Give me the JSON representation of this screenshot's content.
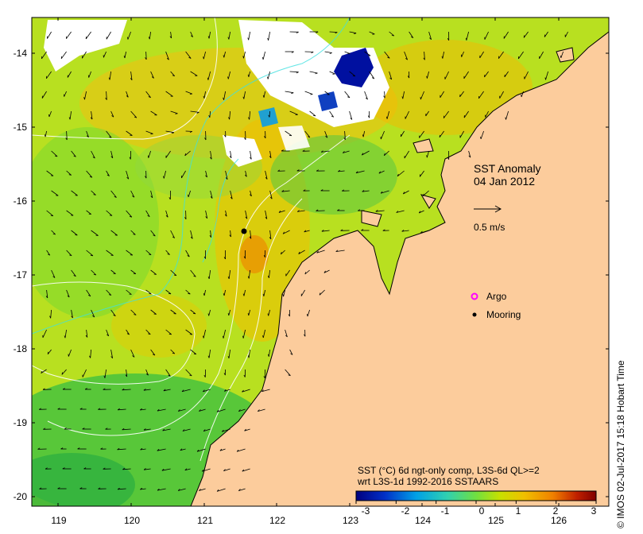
{
  "title": {
    "line1": "SST Anomaly",
    "line2": "04 Jan 2012"
  },
  "vector_scale": {
    "label": "0.5 m/s"
  },
  "legend": {
    "argo": "Argo",
    "mooring": "Mooring"
  },
  "description": {
    "line1": "SST (°C) 6d ngt-only comp, L3S-6d QL>=2",
    "line2": "wrt L3S-1d 1992-2016 SSTAARS"
  },
  "credit": "© IMOS 02-Jul-2017 15:18 Hobart Time",
  "axes": {
    "lon_ticks": [
      "119",
      "120",
      "121",
      "122",
      "123",
      "124",
      "125",
      "126"
    ],
    "lat_ticks": [
      "-14",
      "-15",
      "-16",
      "-17",
      "-18",
      "-19",
      "-20"
    ]
  },
  "colorbar": {
    "ticks": [
      "-3",
      "-2",
      "-1",
      "0",
      "1",
      "2",
      "3"
    ],
    "range": [
      -3,
      3
    ],
    "colors": [
      "#00007f",
      "#0030c8",
      "#00a0e6",
      "#30d0b0",
      "#70e040",
      "#c8e000",
      "#f0c000",
      "#f08000",
      "#c02000",
      "#800000"
    ]
  },
  "colors": {
    "land": "#fccc9c",
    "coast": "#000000",
    "contour": "#ffffff",
    "argo": "#ff00ff"
  },
  "mooring": {
    "lon": 121.6,
    "lat": -16.4
  },
  "extent": {
    "lon": [
      118.7,
      126.7
    ],
    "lat": [
      -20.1,
      -13.45
    ]
  }
}
